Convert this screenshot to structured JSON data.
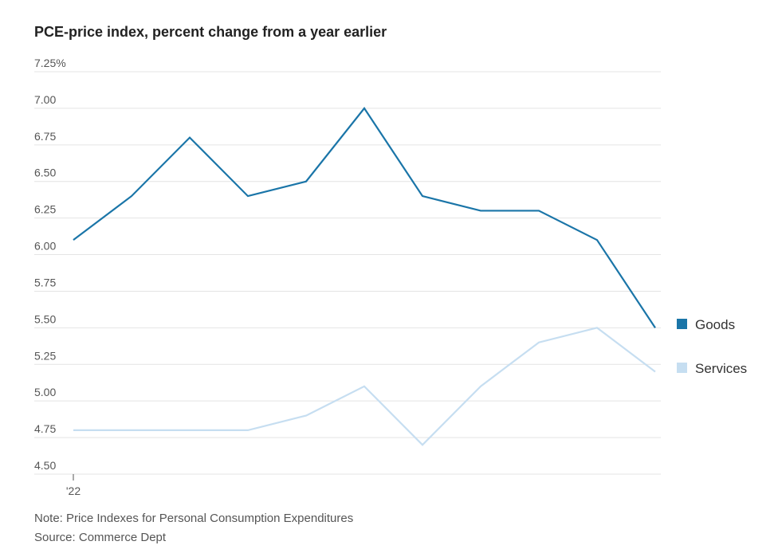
{
  "chart_data": {
    "type": "line",
    "title": "PCE-price index, percent change from a year earlier",
    "x": [
      1,
      2,
      3,
      4,
      5,
      6,
      7,
      8,
      9,
      10,
      11
    ],
    "x_tick_labels": [
      {
        "x": 1,
        "label": "'22"
      }
    ],
    "series": [
      {
        "name": "Goods",
        "color": "#1a75a8",
        "values": [
          6.1,
          6.4,
          6.8,
          6.4,
          6.5,
          7.0,
          6.4,
          6.3,
          6.3,
          6.1,
          5.5
        ]
      },
      {
        "name": "Services",
        "color": "#c6def1",
        "values": [
          4.8,
          4.8,
          4.8,
          4.8,
          4.9,
          5.1,
          4.7,
          5.1,
          5.4,
          5.5,
          5.2
        ]
      }
    ],
    "ylim": [
      4.5,
      7.25
    ],
    "y_ticks": [
      {
        "value": 7.25,
        "label": "7.25%"
      },
      {
        "value": 7.0,
        "label": "7.00"
      },
      {
        "value": 6.75,
        "label": "6.75"
      },
      {
        "value": 6.5,
        "label": "6.50"
      },
      {
        "value": 6.25,
        "label": "6.25"
      },
      {
        "value": 6.0,
        "label": "6.00"
      },
      {
        "value": 5.75,
        "label": "5.75"
      },
      {
        "value": 5.5,
        "label": "5.50"
      },
      {
        "value": 5.25,
        "label": "5.25"
      },
      {
        "value": 5.0,
        "label": "5.00"
      },
      {
        "value": 4.75,
        "label": "4.75"
      },
      {
        "value": 4.5,
        "label": "4.50"
      }
    ],
    "grid": true,
    "legend_position": "right"
  },
  "notes": {
    "note": "Note: Price Indexes for Personal Consumption Expenditures",
    "source": "Source: Commerce Dept"
  }
}
